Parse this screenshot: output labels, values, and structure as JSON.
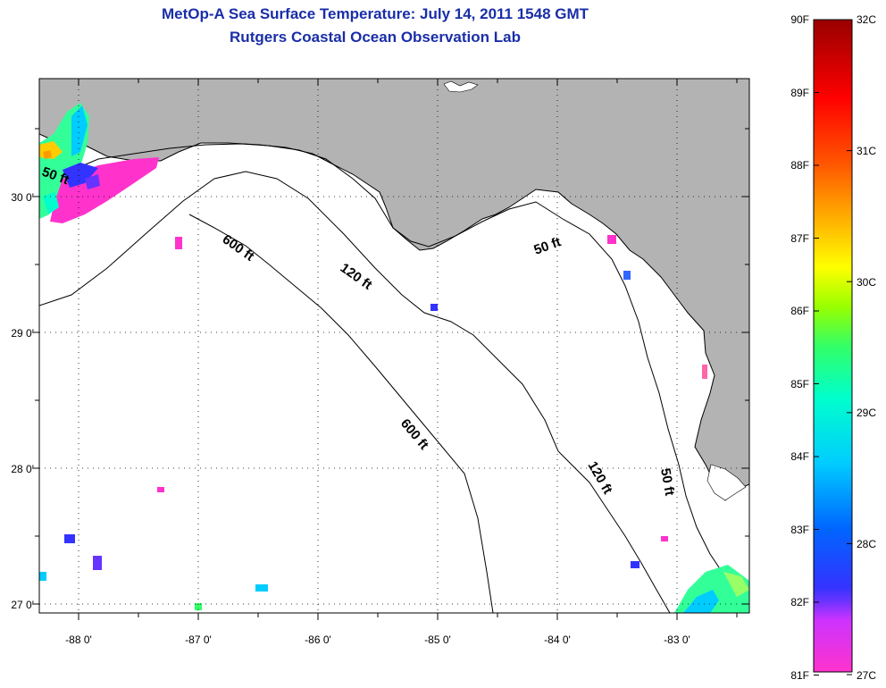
{
  "title": {
    "line1": "MetOp-A Sea Surface Temperature:  July 14, 2011 1548 GMT",
    "line2": "Rutgers Coastal Ocean Observation Lab"
  },
  "axes": {
    "lon_ticks": [
      "-88 0'",
      "-87 0'",
      "-86 0'",
      "-85 0'",
      "-84 0'",
      "-83 0'"
    ],
    "lat_ticks": [
      "30 0'",
      "29 0'",
      "28 0'",
      "27 0'"
    ]
  },
  "contours": {
    "labels": [
      "50 ft",
      "600 ft",
      "120 ft",
      "50 ft",
      "600 ft",
      "120 ft",
      "50 ft"
    ]
  },
  "colorbar": {
    "fahrenheit": [
      "90F",
      "89F",
      "88F",
      "87F",
      "86F",
      "85F",
      "84F",
      "83F",
      "82F",
      "81F"
    ],
    "celsius": [
      "32C",
      "31C",
      "30C",
      "29C",
      "28C",
      "27C"
    ]
  },
  "colors": {
    "land": "#b3b3b3",
    "ocean": "#ffffff",
    "title": "#1a2ea8",
    "colorbar_stops": [
      "#ff33cc",
      "#cc33ff",
      "#3333ff",
      "#0066ff",
      "#00ccff",
      "#00ffcc",
      "#33ff66",
      "#99ff00",
      "#ffff00",
      "#ffaa00",
      "#ff5500",
      "#ff0000",
      "#990000"
    ]
  }
}
